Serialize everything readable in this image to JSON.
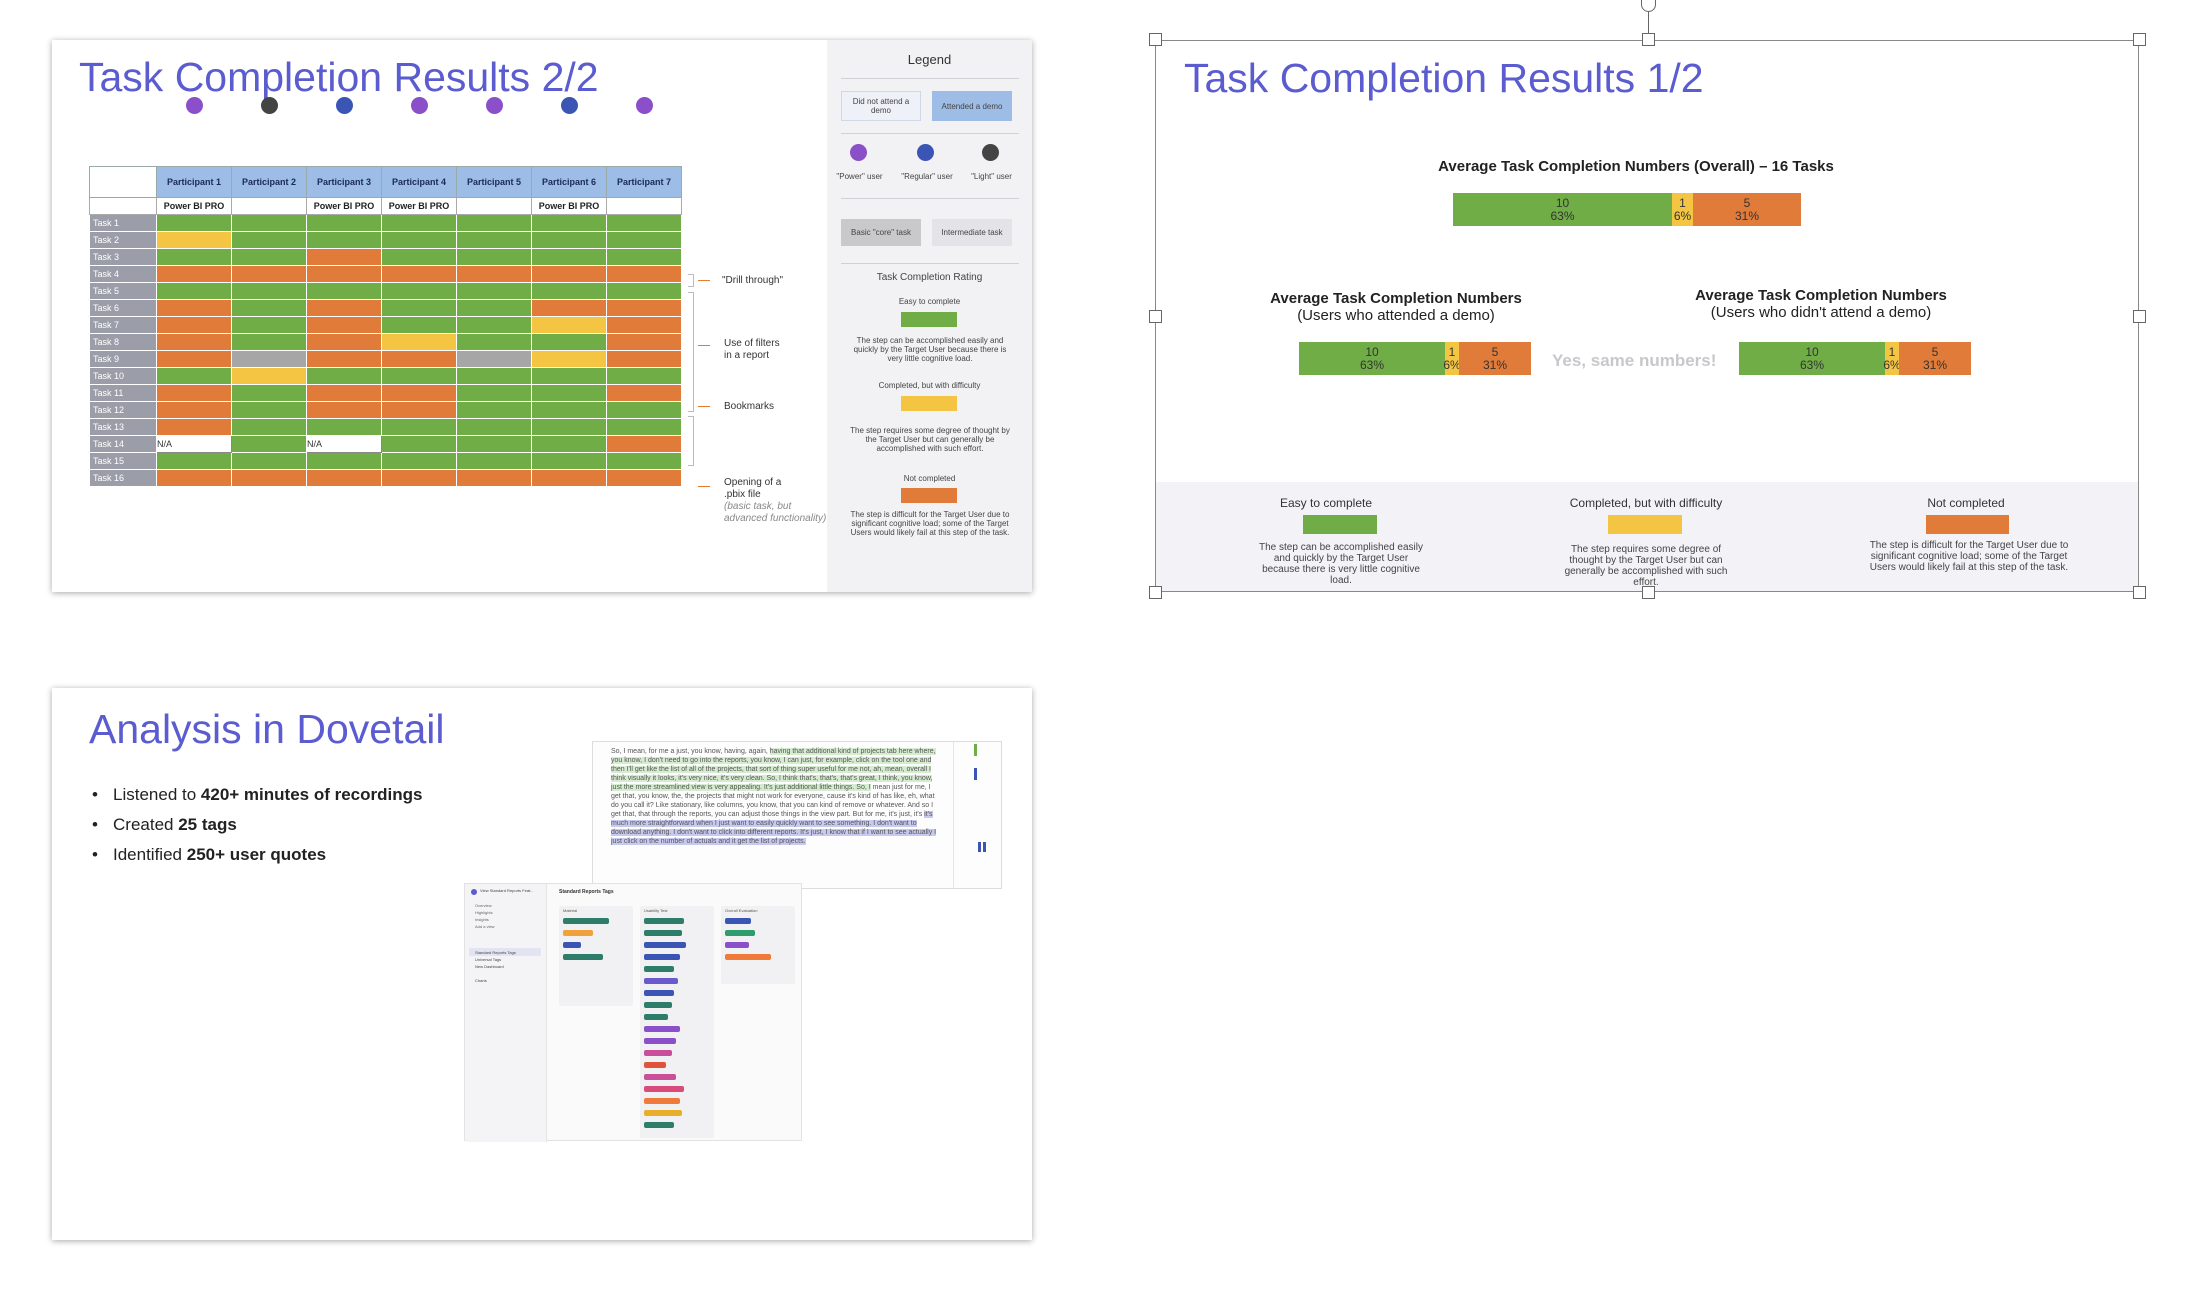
{
  "slide_a": {
    "title": "Task Completion Results 2/2",
    "participants": [
      "Participant 1",
      "Participant 2",
      "Participant 3",
      "Participant 4",
      "Participant 5",
      "Participant 6",
      "Participant 7"
    ],
    "user_type_colors": [
      "#8a4fc9",
      "#444444",
      "#3b55b5",
      "#8a4fc9",
      "#8a4fc9",
      "#3b55b5",
      "#8a4fc9"
    ],
    "license": [
      "Power BI PRO",
      "",
      "Power BI PRO",
      "Power BI PRO",
      "",
      "Power BI PRO",
      ""
    ],
    "tasks": [
      "Task 1",
      "Task 2",
      "Task 3",
      "Task 4",
      "Task 5",
      "Task 6",
      "Task 7",
      "Task 8",
      "Task 9",
      "Task 10",
      "Task 11",
      "Task 12",
      "Task 13",
      "Task 14",
      "Task 15",
      "Task 16"
    ],
    "results": [
      [
        "g",
        "g",
        "g",
        "g",
        "g",
        "g",
        "g"
      ],
      [
        "y",
        "g",
        "g",
        "g",
        "g",
        "g",
        "g"
      ],
      [
        "g",
        "g",
        "o",
        "g",
        "g",
        "g",
        "g"
      ],
      [
        "o",
        "o",
        "o",
        "o",
        "o",
        "o",
        "o"
      ],
      [
        "g",
        "g",
        "g",
        "g",
        "g",
        "g",
        "g"
      ],
      [
        "o",
        "g",
        "o",
        "g",
        "g",
        "o",
        "o"
      ],
      [
        "o",
        "g",
        "o",
        "g",
        "g",
        "y",
        "o"
      ],
      [
        "o",
        "g",
        "o",
        "y",
        "g",
        "g",
        "o"
      ],
      [
        "o",
        "x",
        "o",
        "o",
        "x",
        "y",
        "o"
      ],
      [
        "g",
        "y",
        "g",
        "g",
        "g",
        "g",
        "g"
      ],
      [
        "o",
        "g",
        "o",
        "o",
        "g",
        "g",
        "o"
      ],
      [
        "o",
        "g",
        "o",
        "o",
        "g",
        "g",
        "g"
      ],
      [
        "o",
        "g",
        "g",
        "g",
        "g",
        "g",
        "g"
      ],
      [
        "w",
        "g",
        "w",
        "g",
        "g",
        "g",
        "o"
      ],
      [
        "g",
        "g",
        "g",
        "g",
        "g",
        "g",
        "g"
      ],
      [
        "o",
        "o",
        "o",
        "o",
        "o",
        "o",
        "o"
      ]
    ],
    "na_text": "N/A",
    "annotations": {
      "drill": "\"Drill through\"",
      "filters_1": "Use of filters",
      "filters_2": "in a report",
      "bookmarks": "Bookmarks",
      "pbix_1": "Opening of a",
      "pbix_2": ".pbix file",
      "pbix_3": "(basic task, but",
      "pbix_4": "advanced functionality)"
    },
    "legend": {
      "title": "Legend",
      "not_attend": "Did not attend a demo",
      "attended": "Attended a demo",
      "power": "\"Power\" user",
      "regular": "\"Regular\" user",
      "light": "\"Light\" user",
      "basic": "Basic \"core\" task",
      "intermediate": "Intermediate task",
      "rating_title": "Task Completion Rating",
      "easy": "Easy to complete",
      "easy_desc": "The step can be accomplished easily and quickly by the Target User because there is very little cognitive load.",
      "difficulty": "Completed, but with difficulty",
      "difficulty_desc": "The step requires some degree of thought by the Target User but can generally be accomplished with such effort.",
      "not_completed": "Not completed",
      "not_completed_desc": "The step is difficult for the Target User due to significant cognitive load; some of the Target Users would likely fail at this step of the task."
    },
    "colors": {
      "green": "#70ad47",
      "orange": "#e07b39",
      "yellow": "#f4c542",
      "gray": "#a6a6a6",
      "header_blue": "#9dbde6"
    }
  },
  "slide_b": {
    "title": "Task Completion Results 1/2",
    "overall_title": "Average Task Completion Numbers (Overall) – 16 Tasks",
    "attended_title": "Average Task Completion Numbers",
    "attended_sub": "(Users who attended a demo)",
    "not_attended_title": "Average Task Completion Numbers",
    "not_attended_sub": "(Users who didn't attend a demo)",
    "same_text": "Yes, same numbers!",
    "bars": {
      "green": {
        "count": "10",
        "pct": "63%",
        "share": 0.63
      },
      "yellow": {
        "count": "1",
        "pct": "6%",
        "share": 0.06
      },
      "orange": {
        "count": "5",
        "pct": "31%",
        "share": 0.31
      }
    },
    "footer": {
      "easy": "Easy to complete",
      "easy_desc": "The step can be accomplished easily and quickly by the Target User because there is very little cognitive load.",
      "difficulty": "Completed, but with difficulty",
      "difficulty_desc": "The step requires some degree of thought by the Target User but can generally be accomplished with such effort.",
      "not_completed": "Not completed",
      "not_completed_desc": "The step is difficult for the Target User due to significant cognitive load; some of the Target Users would likely fail at this step of the task."
    }
  },
  "slide_c": {
    "title": "Analysis in Dovetail",
    "bullets": [
      {
        "pre": "Listened to ",
        "bold": "420+ minutes of recordings"
      },
      {
        "pre": "Created ",
        "bold": "25 tags"
      },
      {
        "pre": "Identified ",
        "bold": "250+ user quotes"
      }
    ],
    "transcript": {
      "plain_1": "So, I mean, for me a just, you know, having, again, ",
      "green_1": "having that additional kind of projects tab here where, you know, I don't need to go into the reports, you know, I can just, for example, click on the tool one and then I'll get like the list of all of the projects, that sort of thing super useful for me not, ah, mean, overall I think visually it looks, it's very nice, it's very clean. So, I think that's, that's, that's great, I think, you know, just the more streamlined view is very appealing. It's just additional little things. So, I",
      "plain_2": " mean just for me, I get that, you know, the, the projects that might not work for everyone, cause it's kind of has like, eh, what do you call it? Like stationary, like columns, you know, that you can kind of remove or whatever. And so I get that, that through the reports, you can adjust those things in the view part. But for me, it's just, it's ",
      "blue_1": "it's much more straightforward when I just want to easily quickly want to see something. I don't want to download anything. I don't want to click into different reports. It's just, I know that if I want to see actually I just click on the number of actuals and it get the list of projects."
    },
    "board": {
      "workspace": "View Standard Reports Feat...",
      "page": "Standard Reports Tags",
      "nav": [
        "Overview",
        "Highlights",
        "Insights",
        "Add a view"
      ],
      "nav2": [
        "Standard Reports Tags",
        "Universal Tags",
        "New Dashboard"
      ],
      "nav3": "Charts",
      "col_titles": [
        "Material",
        "Usability Test",
        "Overall Evaluation"
      ]
    }
  }
}
